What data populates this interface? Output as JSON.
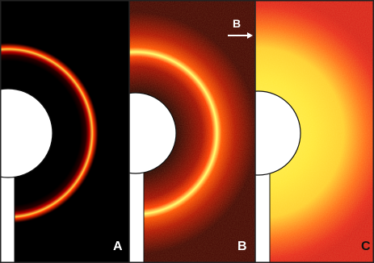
{
  "figure": {
    "panels": [
      {
        "id": "A",
        "label": "A"
      },
      {
        "id": "B",
        "label": "B"
      },
      {
        "id": "C",
        "label": "C"
      }
    ],
    "annotation": {
      "label": "B",
      "arrow_direction": "right"
    },
    "colors": {
      "background_dark": "#000000",
      "ring_red": "#ff1a00",
      "ring_yellow": "#ffff60",
      "diffuse_red": "#e51e10",
      "diffuse_yellow": "#fff04a",
      "beamstop": "#ffffff",
      "border": "#222222"
    }
  }
}
